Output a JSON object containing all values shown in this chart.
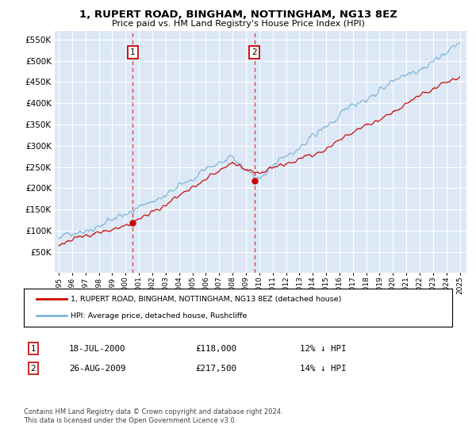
{
  "title": "1, RUPERT ROAD, BINGHAM, NOTTINGHAM, NG13 8EZ",
  "subtitle": "Price paid vs. HM Land Registry's House Price Index (HPI)",
  "background_color": "#ffffff",
  "plot_bg_color": "#dce8f5",
  "ylim": [
    0,
    570000
  ],
  "yticks": [
    50000,
    100000,
    150000,
    200000,
    250000,
    300000,
    350000,
    400000,
    450000,
    500000,
    550000
  ],
  "purchase1": {
    "date_str": "18-JUL-2000",
    "price": 118000,
    "label": "1",
    "hpi_pct": "12% ↓ HPI",
    "year": 2000.54
  },
  "purchase2": {
    "date_str": "26-AUG-2009",
    "price": 217500,
    "label": "2",
    "hpi_pct": "14% ↓ HPI",
    "year": 2009.65
  },
  "legend_line1": "1, RUPERT ROAD, BINGHAM, NOTTINGHAM, NG13 8EZ (detached house)",
  "legend_line2": "HPI: Average price, detached house, Rushcliffe",
  "footnote": "Contains HM Land Registry data © Crown copyright and database right 2024.\nThis data is licensed under the Open Government Licence v3.0.",
  "red_color": "#cc0000",
  "blue_color": "#7eb3d8",
  "start_year": 1995,
  "end_year": 2025
}
